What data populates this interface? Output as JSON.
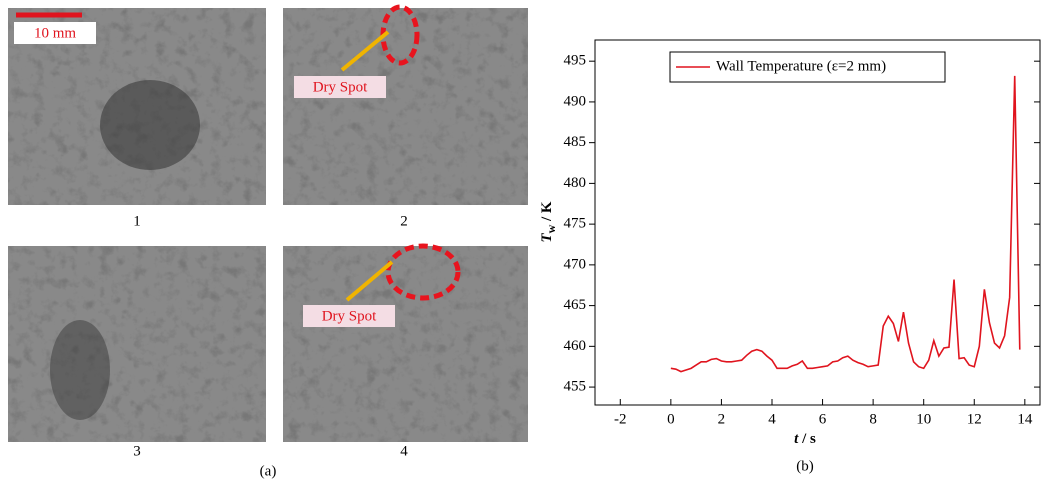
{
  "figure": {
    "photo_labels": [
      "1",
      "2",
      "3",
      "4"
    ],
    "scale_bar": "10 mm",
    "annotations": [
      "Dry Spot",
      "Dry Spot"
    ],
    "caption_a": "(a)",
    "caption_b": "(b)"
  },
  "chart_data": {
    "type": "line",
    "x_label": [
      "t",
      " / s"
    ],
    "y_label": [
      "T",
      "w",
      " / K"
    ],
    "xlim": [
      -3,
      14.6
    ],
    "ylim": [
      452.8,
      497.6
    ],
    "xticks": [
      -2,
      0,
      2,
      4,
      6,
      8,
      10,
      12,
      14
    ],
    "yticks": [
      455,
      460,
      465,
      470,
      475,
      480,
      485,
      490,
      495
    ],
    "legend": "top",
    "series": [
      {
        "name": "Wall Temperature (ε=2 mm)",
        "color": "#e0141e",
        "x": [
          0,
          0.2,
          0.4,
          0.6,
          0.8,
          1.0,
          1.2,
          1.4,
          1.6,
          1.8,
          2.0,
          2.2,
          2.4,
          2.6,
          2.8,
          3.0,
          3.2,
          3.4,
          3.6,
          3.8,
          4.0,
          4.2,
          4.4,
          4.6,
          4.8,
          5.0,
          5.2,
          5.4,
          5.6,
          5.8,
          6.0,
          6.2,
          6.4,
          6.6,
          6.8,
          7.0,
          7.2,
          7.4,
          7.6,
          7.8,
          8.0,
          8.2,
          8.4,
          8.6,
          8.8,
          9.0,
          9.2,
          9.4,
          9.6,
          9.8,
          10.0,
          10.2,
          10.4,
          10.6,
          10.8,
          11.0,
          11.2,
          11.4,
          11.6,
          11.8,
          12.0,
          12.2,
          12.4,
          12.6,
          12.8,
          13.0,
          13.2,
          13.4,
          13.6,
          13.8
        ],
        "values": [
          457.3,
          457.2,
          456.9,
          457.1,
          457.3,
          457.7,
          458.1,
          458.1,
          458.4,
          458.5,
          458.2,
          458.1,
          458.1,
          458.2,
          458.3,
          458.9,
          459.4,
          459.6,
          459.4,
          458.8,
          458.3,
          457.3,
          457.3,
          457.3,
          457.6,
          457.8,
          458.2,
          457.3,
          457.3,
          457.4,
          457.5,
          457.6,
          458.1,
          458.2,
          458.6,
          458.8,
          458.3,
          458.0,
          457.8,
          457.5,
          457.6,
          457.7,
          462.5,
          463.7,
          462.8,
          460.6,
          464.2,
          460.4,
          458.1,
          457.5,
          457.3,
          458.3,
          460.7,
          458.8,
          459.8,
          459.9,
          468.2,
          458.5,
          458.6,
          457.7,
          457.5,
          460.0,
          467.0,
          462.9,
          460.4,
          459.8,
          461.3,
          466.0,
          493.2,
          459.6
        ]
      }
    ]
  }
}
